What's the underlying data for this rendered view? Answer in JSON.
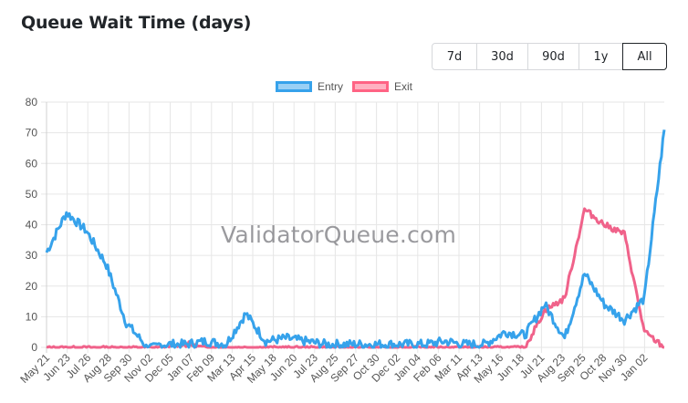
{
  "header": {
    "title": "Queue Wait Time (days)"
  },
  "range_selector": {
    "options": [
      {
        "label": "7d",
        "active": false
      },
      {
        "label": "30d",
        "active": false
      },
      {
        "label": "90d",
        "active": false
      },
      {
        "label": "1y",
        "active": false
      },
      {
        "label": "All",
        "active": true
      }
    ]
  },
  "legend": [
    {
      "label": "Entry",
      "border": "#36a2eb",
      "fill": "#9ad0f5"
    },
    {
      "label": "Exit",
      "border": "#ff6384",
      "fill": "#ffb1c1"
    }
  ],
  "watermark": "ValidatorQueue.com",
  "colors": {
    "entry": "#36a2eb",
    "exit": "#f0628a",
    "grid": "#e5e5e5"
  },
  "chart_data": {
    "type": "line",
    "title": "Queue Wait Time (days)",
    "xlabel": "",
    "ylabel": "",
    "ylim": [
      0,
      80
    ],
    "yticks": [
      0,
      10,
      20,
      30,
      40,
      50,
      60,
      70,
      80
    ],
    "grid": true,
    "legend_position": "top",
    "categories": [
      "May 21",
      "Jun 23",
      "Jul 26",
      "Aug 28",
      "Sep 30",
      "Nov 02",
      "Dec 05",
      "Jan 07",
      "Feb 09",
      "Mar 13",
      "Apr 15",
      "May 18",
      "Jun 20",
      "Jul 23",
      "Aug 25",
      "Sep 27",
      "Oct 30",
      "Dec 02",
      "Jan 04",
      "Feb 06",
      "Mar 11",
      "Apr 13",
      "May 16",
      "Jun 18",
      "Jul 21",
      "Aug 23",
      "Sep 25",
      "Oct 28",
      "Nov 30",
      "Jan 02"
    ],
    "series": [
      {
        "name": "Entry",
        "color": "#36a2eb",
        "values": [
          31,
          44,
          38,
          27,
          8,
          0.5,
          1,
          1,
          2,
          1,
          11,
          2,
          3,
          2,
          1,
          1,
          1,
          1,
          1,
          1,
          2,
          1,
          1,
          5,
          4,
          14,
          3,
          24,
          14,
          9,
          16,
          71
        ]
      },
      {
        "name": "Exit",
        "color": "#f0628a",
        "values": [
          0,
          0,
          0,
          0,
          0,
          0,
          0,
          1,
          0,
          0,
          0,
          0,
          0,
          0,
          0,
          0,
          0,
          0,
          0,
          0,
          0,
          0,
          0,
          0,
          0,
          12,
          16,
          45,
          40,
          37,
          5,
          0
        ]
      }
    ],
    "series_x_note": "32 points spanning the 30 category labels (last two beyond Jan 02)"
  }
}
